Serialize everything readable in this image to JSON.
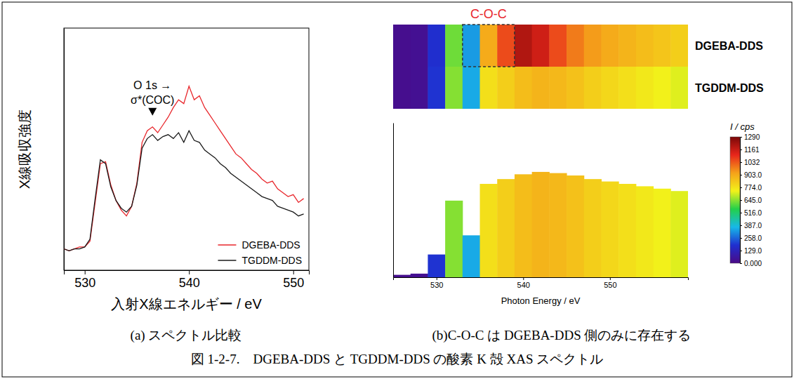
{
  "chart_data": [
    {
      "type": "line",
      "xlabel": "入射X線エネルギー / eV",
      "ylabel": "X線吸収強度",
      "x": [
        528,
        528.5,
        529,
        529.5,
        530,
        530.5,
        531,
        531.5,
        532,
        532.5,
        533,
        533.5,
        534,
        534.5,
        535,
        535.5,
        536,
        536.5,
        537,
        537.5,
        538,
        538.5,
        539,
        539.5,
        540,
        540.5,
        541,
        541.5,
        542,
        542.5,
        543,
        543.5,
        544,
        544.5,
        545,
        545.5,
        546,
        546.5,
        547,
        547.5,
        548,
        548.5,
        549,
        549.5,
        550,
        550.5,
        551
      ],
      "series": [
        {
          "name": "DGEBA-DDS",
          "color": "#e8262b",
          "values": [
            0.11,
            0.1,
            0.11,
            0.12,
            0.12,
            0.15,
            0.35,
            0.55,
            0.56,
            0.44,
            0.36,
            0.31,
            0.28,
            0.33,
            0.45,
            0.66,
            0.72,
            0.74,
            0.71,
            0.75,
            0.79,
            0.84,
            0.88,
            0.86,
            0.95,
            0.88,
            0.9,
            0.84,
            0.8,
            0.76,
            0.72,
            0.68,
            0.64,
            0.6,
            0.58,
            0.55,
            0.52,
            0.5,
            0.47,
            0.45,
            0.46,
            0.42,
            0.4,
            0.38,
            0.39,
            0.35,
            0.37
          ]
        },
        {
          "name": "TGDDM-DDS",
          "color": "#1a1a1a",
          "values": [
            0.11,
            0.1,
            0.11,
            0.11,
            0.12,
            0.16,
            0.37,
            0.57,
            0.55,
            0.43,
            0.36,
            0.32,
            0.3,
            0.33,
            0.44,
            0.63,
            0.68,
            0.7,
            0.67,
            0.69,
            0.7,
            0.68,
            0.71,
            0.66,
            0.72,
            0.67,
            0.66,
            0.62,
            0.6,
            0.58,
            0.55,
            0.53,
            0.5,
            0.48,
            0.46,
            0.44,
            0.42,
            0.4,
            0.38,
            0.37,
            0.36,
            0.33,
            0.32,
            0.31,
            0.3,
            0.28,
            0.29
          ]
        }
      ],
      "xlim": [
        528,
        551.5
      ],
      "xticks": [
        530,
        540,
        550
      ],
      "ylim": [
        0,
        1.25
      ],
      "tick_labels": "x",
      "grid": false,
      "legend": "lower right",
      "annotation": {
        "lines": [
          "O 1s →",
          "σ*(COC)"
        ],
        "x": 536.5
      }
    },
    {
      "type": "heatmap",
      "categories": [
        "DGEBA-DDS",
        "TGDDM-DDS"
      ],
      "x": [
        526,
        528,
        530,
        532,
        534,
        536,
        538,
        540,
        542,
        544,
        546,
        548,
        550,
        552,
        554,
        556,
        558
      ],
      "cells": [
        [
          20,
          30,
          180,
          620,
          330,
          900,
          1050,
          1200,
          1150,
          1050,
          980,
          930,
          900,
          880,
          860,
          840,
          820
        ],
        [
          20,
          30,
          190,
          640,
          350,
          780,
          820,
          860,
          880,
          870,
          850,
          820,
          800,
          780,
          760,
          740,
          720
        ]
      ],
      "xlabel": "Photon Energy / eV",
      "xlim": [
        525,
        559
      ],
      "xticks": [
        530,
        540,
        550
      ],
      "ylim": [
        0,
        1290
      ],
      "tick_labels": "x",
      "annotation": {
        "text": "C-O-C",
        "x": [
          533,
          539
        ]
      },
      "colorbar": {
        "title": "I / cps",
        "range": [
          0,
          1290
        ],
        "ticks": [
          {
            "value": 0,
            "label": "0.000"
          },
          {
            "value": 129,
            "label": "129.0"
          },
          {
            "value": 258,
            "label": "258.0"
          },
          {
            "value": 387,
            "label": "387.0"
          },
          {
            "value": 516,
            "label": "516.0"
          },
          {
            "value": 645,
            "label": "645.0"
          },
          {
            "value": 774,
            "label": "774.0"
          },
          {
            "value": 903,
            "label": "903.0"
          },
          1032,
          1161,
          1290
        ]
      }
    }
  ],
  "figure": {
    "caption_a": "(a) スペクトル比較",
    "caption_b": "(b)C-O-C は DGEBA-DDS 側のみに存在する",
    "caption": "図 1-2-7.　DGEBA-DDS と TGDDM-DDS の酸素 K 殻 XAS スペクトル"
  }
}
